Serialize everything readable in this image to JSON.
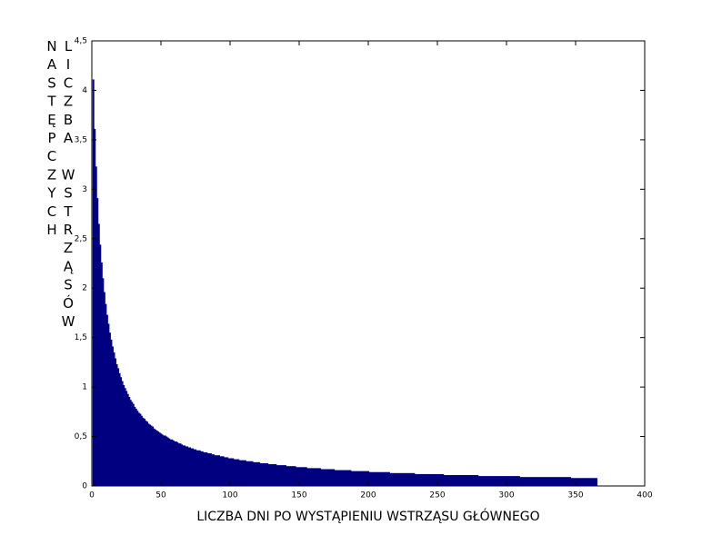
{
  "chart_data": {
    "type": "bar",
    "xlabel": "LICZBA DNI PO WYSTĄPIENIU WSTRZĄSU GŁÓWNEGO",
    "ylabel": "LICZBA WSTRZĄSÓW NASTĘPCZYCH",
    "color": "#000080",
    "xlim": [
      0,
      400
    ],
    "xticks": [
      0,
      50,
      100,
      150,
      200,
      250,
      300,
      350,
      400
    ],
    "ylim": [
      0,
      4.5
    ],
    "yticks": [
      0,
      {
        "value": 0.5,
        "label": "0,5"
      },
      1,
      {
        "value": 1.5,
        "label": "1,5"
      },
      2,
      {
        "value": 2.5,
        "label": "2,5"
      },
      3,
      {
        "value": 3.5,
        "label": "3,5"
      },
      4,
      {
        "value": 4.5,
        "label": "4,5"
      }
    ],
    "grid": false,
    "x": [
      1,
      2,
      3,
      4,
      5,
      6,
      7,
      8,
      9,
      10,
      11,
      12,
      13,
      14,
      15,
      16,
      17,
      18,
      19,
      20,
      21,
      22,
      23,
      24,
      25,
      26,
      27,
      28,
      29,
      30,
      31,
      32,
      33,
      34,
      35,
      36,
      37,
      38,
      39,
      40,
      41,
      42,
      43,
      44,
      45,
      46,
      47,
      48,
      49,
      50,
      51,
      52,
      53,
      54,
      55,
      56,
      57,
      58,
      59,
      60,
      61,
      62,
      63,
      64,
      65,
      66,
      67,
      68,
      69,
      70,
      71,
      72,
      73,
      74,
      75,
      76,
      77,
      78,
      79,
      80,
      81,
      82,
      83,
      84,
      85,
      86,
      87,
      88,
      89,
      90,
      91,
      92,
      93,
      94,
      95,
      96,
      97,
      98,
      99,
      100,
      101,
      102,
      103,
      104,
      105,
      106,
      107,
      108,
      109,
      110,
      111,
      112,
      113,
      114,
      115,
      116,
      117,
      118,
      119,
      120,
      121,
      122,
      123,
      124,
      125,
      126,
      127,
      128,
      129,
      130,
      131,
      132,
      133,
      134,
      135,
      136,
      137,
      138,
      139,
      140,
      141,
      142,
      143,
      144,
      145,
      146,
      147,
      148,
      149,
      150,
      151,
      152,
      153,
      154,
      155,
      156,
      157,
      158,
      159,
      160,
      161,
      162,
      163,
      164,
      165,
      166,
      167,
      168,
      169,
      170,
      171,
      172,
      173,
      174,
      175,
      176,
      177,
      178,
      179,
      180,
      181,
      182,
      183,
      184,
      185,
      186,
      187,
      188,
      189,
      190,
      191,
      192,
      193,
      194,
      195,
      196,
      197,
      198,
      199,
      200,
      201,
      202,
      203,
      204,
      205,
      206,
      207,
      208,
      209,
      210,
      211,
      212,
      213,
      214,
      215,
      216,
      217,
      218,
      219,
      220,
      221,
      222,
      223,
      224,
      225,
      226,
      227,
      228,
      229,
      230,
      231,
      232,
      233,
      234,
      235,
      236,
      237,
      238,
      239,
      240,
      241,
      242,
      243,
      244,
      245,
      246,
      247,
      248,
      249,
      250,
      251,
      252,
      253,
      254,
      255,
      256,
      257,
      258,
      259,
      260,
      261,
      262,
      263,
      264,
      265,
      266,
      267,
      268,
      269,
      270,
      271,
      272,
      273,
      274,
      275,
      276,
      277,
      278,
      279,
      280,
      281,
      282,
      283,
      284,
      285,
      286,
      287,
      288,
      289,
      290,
      291,
      292,
      293,
      294,
      295,
      296,
      297,
      298,
      299,
      300,
      301,
      302,
      303,
      304,
      305,
      306,
      307,
      308,
      309,
      310,
      311,
      312,
      313,
      314,
      315,
      316,
      317,
      318,
      319,
      320,
      321,
      322,
      323,
      324,
      325,
      326,
      327,
      328,
      329,
      330,
      331,
      332,
      333,
      334,
      335,
      336,
      337,
      338,
      339,
      340,
      341,
      342,
      343,
      344,
      345,
      346,
      347,
      348,
      349,
      350,
      351,
      352,
      353,
      354,
      355,
      356,
      357,
      358,
      359,
      360,
      361,
      362,
      363,
      364,
      365
    ],
    "values": [
      4.11,
      3.61,
      3.23,
      2.91,
      2.65,
      2.44,
      2.26,
      2.1,
      1.96,
      1.84,
      1.73,
      1.64,
      1.55,
      1.48,
      1.41,
      1.35,
      1.29,
      1.23,
      1.19,
      1.14,
      1.1,
      1.06,
      1.02,
      0.99,
      0.96,
      0.93,
      0.9,
      0.87,
      0.85,
      0.83,
      0.8,
      0.78,
      0.76,
      0.74,
      0.73,
      0.71,
      0.69,
      0.68,
      0.66,
      0.65,
      0.63,
      0.62,
      0.61,
      0.6,
      0.58,
      0.57,
      0.56,
      0.55,
      0.54,
      0.53,
      0.52,
      0.51,
      0.51,
      0.5,
      0.49,
      0.48,
      0.47,
      0.47,
      0.46,
      0.45,
      0.45,
      0.44,
      0.43,
      0.43,
      0.42,
      0.41,
      0.41,
      0.4,
      0.4,
      0.39,
      0.39,
      0.38,
      0.38,
      0.37,
      0.37,
      0.36,
      0.36,
      0.36,
      0.35,
      0.35,
      0.34,
      0.34,
      0.34,
      0.33,
      0.33,
      0.33,
      0.32,
      0.32,
      0.31,
      0.31,
      0.31,
      0.31,
      0.3,
      0.3,
      0.3,
      0.29,
      0.29,
      0.29,
      0.28,
      0.28,
      0.28,
      0.28,
      0.27,
      0.27,
      0.27,
      0.27,
      0.26,
      0.26,
      0.26,
      0.26,
      0.26,
      0.25,
      0.25,
      0.25,
      0.25,
      0.25,
      0.24,
      0.24,
      0.24,
      0.24,
      0.24,
      0.23,
      0.23,
      0.23,
      0.23,
      0.23,
      0.23,
      0.22,
      0.22,
      0.22,
      0.22,
      0.22,
      0.22,
      0.21,
      0.21,
      0.21,
      0.21,
      0.21,
      0.21,
      0.21,
      0.2,
      0.2,
      0.2,
      0.2,
      0.2,
      0.2,
      0.2,
      0.19,
      0.19,
      0.19,
      0.19,
      0.19,
      0.19,
      0.19,
      0.19,
      0.18,
      0.18,
      0.18,
      0.18,
      0.18,
      0.18,
      0.18,
      0.18,
      0.18,
      0.18,
      0.17,
      0.17,
      0.17,
      0.17,
      0.17,
      0.17,
      0.17,
      0.17,
      0.17,
      0.17,
      0.16,
      0.16,
      0.16,
      0.16,
      0.16,
      0.16,
      0.16,
      0.16,
      0.16,
      0.16,
      0.16,
      0.16,
      0.15,
      0.15,
      0.15,
      0.15,
      0.15,
      0.15,
      0.15,
      0.15,
      0.15,
      0.15,
      0.15,
      0.15,
      0.15,
      0.14,
      0.14,
      0.14,
      0.14,
      0.14,
      0.14,
      0.14,
      0.14,
      0.14,
      0.14,
      0.14,
      0.14,
      0.14,
      0.14,
      0.14,
      0.13,
      0.13,
      0.13,
      0.13,
      0.13,
      0.13,
      0.13,
      0.13,
      0.13,
      0.13,
      0.13,
      0.13,
      0.13,
      0.13,
      0.13,
      0.13,
      0.13,
      0.13,
      0.12,
      0.12,
      0.12,
      0.12,
      0.12,
      0.12,
      0.12,
      0.12,
      0.12,
      0.12,
      0.12,
      0.12,
      0.12,
      0.12,
      0.12,
      0.12,
      0.12,
      0.12,
      0.12,
      0.12,
      0.12,
      0.11,
      0.11,
      0.11,
      0.11,
      0.11,
      0.11,
      0.11,
      0.11,
      0.11,
      0.11,
      0.11,
      0.11,
      0.11,
      0.11,
      0.11,
      0.11,
      0.11,
      0.11,
      0.11,
      0.11,
      0.11,
      0.11,
      0.11,
      0.11,
      0.11,
      0.1,
      0.1,
      0.1,
      0.1,
      0.1,
      0.1,
      0.1,
      0.1,
      0.1,
      0.1,
      0.1,
      0.1,
      0.1,
      0.1,
      0.1,
      0.1,
      0.1,
      0.1,
      0.1,
      0.1,
      0.1,
      0.1,
      0.1,
      0.1,
      0.1,
      0.1,
      0.1,
      0.1,
      0.1,
      0.1,
      0.09,
      0.09,
      0.09,
      0.09,
      0.09,
      0.09,
      0.09,
      0.09,
      0.09,
      0.09,
      0.09,
      0.09,
      0.09,
      0.09,
      0.09,
      0.09,
      0.09,
      0.09,
      0.09,
      0.09,
      0.09,
      0.09,
      0.09,
      0.09,
      0.09,
      0.09,
      0.09,
      0.09,
      0.09,
      0.09,
      0.09,
      0.09,
      0.09,
      0.09,
      0.09,
      0.09,
      0.09,
      0.08,
      0.08,
      0.08,
      0.08,
      0.08,
      0.08,
      0.08,
      0.08,
      0.08,
      0.08,
      0.08,
      0.08,
      0.08,
      0.08,
      0.08,
      0.08,
      0.08,
      0.08,
      0.08
    ]
  }
}
